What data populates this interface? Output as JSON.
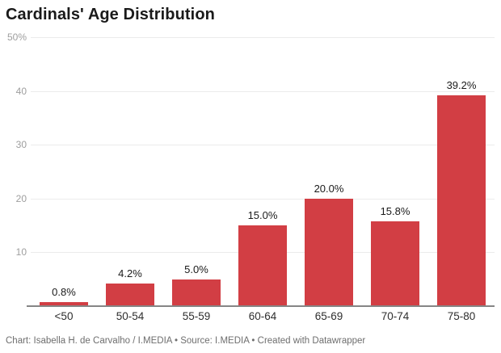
{
  "title": "Cardinals' Age Distribution",
  "footer": "Chart: Isabella H. de Carvalho / I.MEDIA • Source: I.MEDIA • Created with Datawrapper",
  "colors": {
    "bar": "#d23e44",
    "grid": "#ebebeb",
    "axis_line": "#868686",
    "title_text": "#1a1a1a",
    "ytick_text": "#9e9e9e",
    "xtick_text": "#2e2e2e",
    "value_label_text": "#1a1a1a",
    "footer_text": "#6e6e6e",
    "background": "#ffffff"
  },
  "chart_data": {
    "type": "bar",
    "title": "Cardinals' Age Distribution",
    "categories": [
      "<50",
      "50-54",
      "55-59",
      "60-64",
      "65-69",
      "70-74",
      "75-80"
    ],
    "values": [
      0.8,
      4.2,
      5.0,
      15.0,
      20.0,
      15.8,
      39.2
    ],
    "value_labels": [
      "0.8%",
      "4.2%",
      "5.0%",
      "15.0%",
      "20.0%",
      "15.8%",
      "39.2%"
    ],
    "xlabel": "",
    "ylabel": "",
    "ylim": [
      0,
      50
    ],
    "yticks": [
      {
        "value": 10,
        "label": "10"
      },
      {
        "value": 20,
        "label": "20"
      },
      {
        "value": 30,
        "label": "30"
      },
      {
        "value": 40,
        "label": "40"
      },
      {
        "value": 50,
        "label": "50%"
      }
    ],
    "grid": true,
    "legend": "none",
    "attribution": "Chart: Isabella H. de Carvalho / I.MEDIA • Source: I.MEDIA • Created with Datawrapper"
  }
}
